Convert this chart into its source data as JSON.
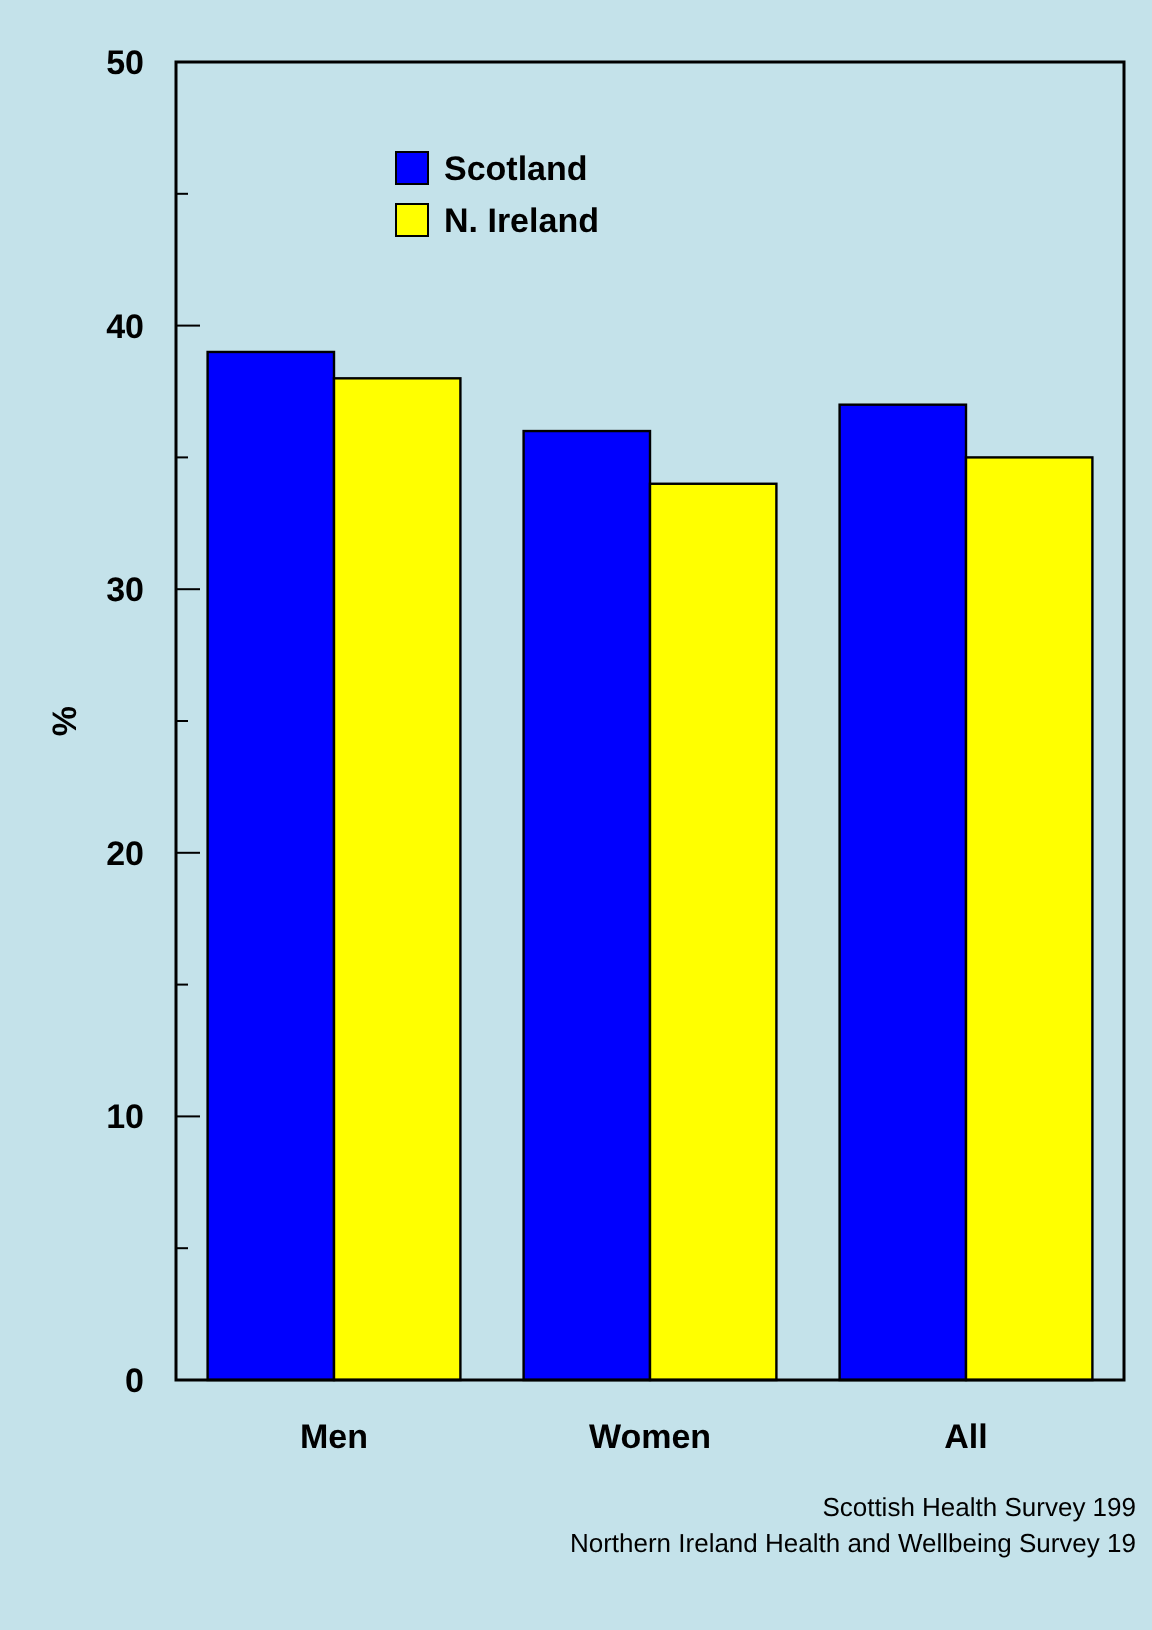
{
  "chart_data": {
    "type": "bar",
    "ylabel": "%",
    "categories": [
      "Men",
      "Women",
      "All"
    ],
    "series": [
      {
        "name": "Scotland",
        "color": "#0000ff",
        "values": [
          39,
          36,
          37
        ]
      },
      {
        "name": "N. Ireland",
        "color": "#ffff00",
        "values": [
          38,
          34,
          35
        ]
      }
    ],
    "ylim": [
      0,
      50
    ],
    "yticks": [
      0,
      {
        "value": 5,
        "label": null
      },
      10,
      {
        "value": 15,
        "label": null
      },
      20,
      {
        "value": 25,
        "label": null
      },
      30,
      {
        "value": 35,
        "label": null
      },
      40,
      {
        "value": 45,
        "label": null
      },
      50
    ],
    "legend": "top left",
    "annotations": [
      "Scottish Health Survey 199",
      "Northern Ireland Health and Wellbeing Survey 19"
    ]
  }
}
